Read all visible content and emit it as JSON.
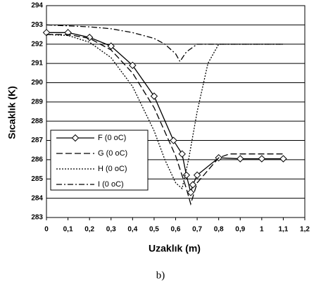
{
  "chart_data": {
    "type": "line",
    "xlabel": "Uzaklık (m)",
    "ylabel": "Sıcaklık (K)",
    "caption": "b)",
    "xlim": [
      0,
      1.2
    ],
    "ylim": [
      283,
      294
    ],
    "xticks": [
      0,
      {
        "value": 0.1,
        "label": "0,1"
      },
      {
        "value": 0.2,
        "label": "0,2"
      },
      {
        "value": 0.3,
        "label": "0,3"
      },
      {
        "value": 0.4,
        "label": "0,4"
      },
      {
        "value": 0.5,
        "label": "0,5"
      },
      {
        "value": 0.6,
        "label": "0,6"
      },
      {
        "value": 0.7,
        "label": "0,7"
      },
      {
        "value": 0.8,
        "label": "0,8"
      },
      {
        "value": 0.9,
        "label": "0,9"
      },
      1,
      {
        "value": 1.1,
        "label": "1,1"
      },
      {
        "value": 1.2,
        "label": "1,2"
      }
    ],
    "yticks": [
      283,
      284,
      285,
      286,
      287,
      288,
      289,
      290,
      291,
      292,
      293,
      294
    ],
    "grid": "y",
    "legend": "lower left",
    "series": [
      {
        "name": "F (0 oC)",
        "color": "#000000",
        "line_style": "solid",
        "marker": "diamond",
        "x": [
          0,
          0.1,
          0.2,
          0.3,
          0.4,
          0.5,
          0.59,
          0.63,
          0.65,
          0.67,
          0.68,
          0.7,
          0.8,
          0.9,
          1.0,
          1.1
        ],
        "values": [
          292.6,
          292.6,
          292.35,
          291.9,
          290.9,
          289.3,
          287.0,
          286.3,
          285.2,
          284.3,
          284.7,
          285.2,
          286.1,
          286.05,
          286.05,
          286.05
        ]
      },
      {
        "name": "G (0 oC)",
        "color": "#000000",
        "line_style": "dashed",
        "x": [
          0,
          0.1,
          0.2,
          0.3,
          0.4,
          0.5,
          0.6,
          0.65,
          0.67,
          0.7,
          0.8,
          0.85,
          1.1
        ],
        "values": [
          292.5,
          292.5,
          292.3,
          291.7,
          290.5,
          288.7,
          286.2,
          284.5,
          283.7,
          284.8,
          286.1,
          286.3,
          286.3
        ]
      },
      {
        "name": "H (0 oC)",
        "color": "#000000",
        "line_style": "dotted",
        "x": [
          0,
          0.1,
          0.2,
          0.3,
          0.4,
          0.5,
          0.55,
          0.6,
          0.63,
          0.66,
          0.7,
          0.75,
          0.8,
          0.9,
          1.1
        ],
        "values": [
          292.5,
          292.45,
          292.1,
          291.3,
          289.8,
          287.5,
          286.0,
          284.8,
          284.5,
          286.0,
          288.5,
          291.0,
          292.0,
          292.0,
          292.0
        ]
      },
      {
        "name": "I (0 oC)",
        "color": "#000000",
        "line_style": "dashdot",
        "x": [
          0,
          0.2,
          0.3,
          0.4,
          0.5,
          0.55,
          0.6,
          0.62,
          0.65,
          0.7,
          0.8,
          1.1
        ],
        "values": [
          293.0,
          292.9,
          292.8,
          292.6,
          292.3,
          292.0,
          291.5,
          291.1,
          291.6,
          292.0,
          292.0,
          292.0
        ]
      }
    ]
  }
}
